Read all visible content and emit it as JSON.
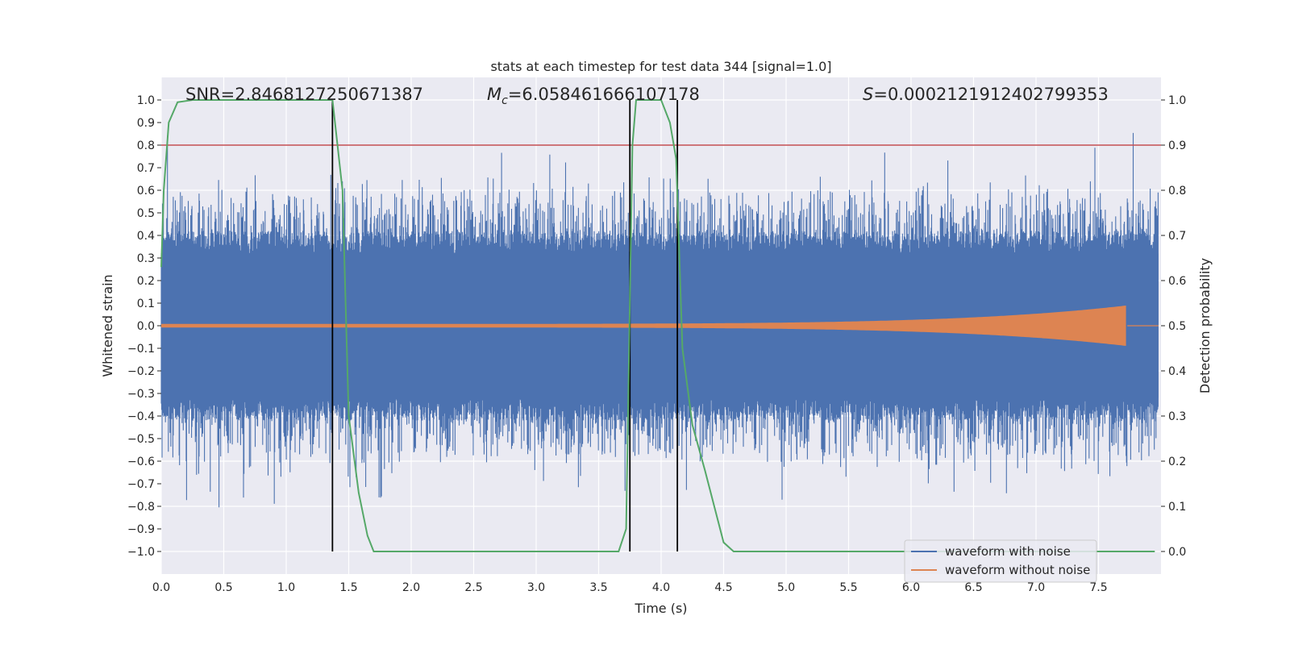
{
  "chart_data": {
    "type": "line",
    "title": "stats at each timestep for test data 344 [signal=1.0]",
    "xlabel": "Time (s)",
    "ylabel": "Whitened strain",
    "y2label": "Detection probability",
    "xlim": [
      0.0,
      8.0
    ],
    "ylim": [
      -1.1,
      1.1
    ],
    "y2lim": [
      -0.05,
      1.05
    ],
    "x_ticks": [
      0.0,
      0.5,
      1.0,
      1.5,
      2.0,
      2.5,
      3.0,
      3.5,
      4.0,
      4.5,
      5.0,
      5.5,
      6.0,
      6.5,
      7.0,
      7.5
    ],
    "y_ticks": [
      -1.0,
      -0.9,
      -0.8,
      -0.7,
      -0.6,
      -0.5,
      -0.4,
      -0.3,
      -0.2,
      -0.1,
      0.0,
      0.1,
      0.2,
      0.3,
      0.4,
      0.5,
      0.6,
      0.7,
      0.8,
      0.9,
      1.0
    ],
    "y2_ticks": [
      0.0,
      0.1,
      0.2,
      0.3,
      0.4,
      0.5,
      0.6,
      0.7,
      0.8,
      0.9,
      1.0
    ],
    "annotations": {
      "snr": "SNR=2.8468127250671387",
      "mc_symbol": "M",
      "mc_sub": "c",
      "mc_value": "=6.058461666107178",
      "s_symbol": "S",
      "s_value": "=0.00021219124027993​53"
    },
    "threshold_line": {
      "y2": 0.9,
      "color": "#c44e52"
    },
    "vertical_markers": [
      1.37,
      3.75,
      4.13
    ],
    "series": [
      {
        "name": "waveform with noise",
        "color": "#4c72b0",
        "envelope": "noise band approx ±0.4 with spikes up to ±1.0"
      },
      {
        "name": "waveform without noise",
        "color": "#dd8452",
        "chirp_end": 7.73,
        "peak_amplitude": 0.09
      },
      {
        "name": "detection probability",
        "color": "#55a868",
        "axis": "y2",
        "x": [
          0.0,
          0.02,
          0.06,
          0.13,
          0.25,
          0.5,
          1.0,
          1.37,
          1.45,
          1.5,
          1.58,
          1.65,
          1.7,
          2.0,
          3.0,
          3.66,
          3.72,
          3.77,
          3.8,
          4.0,
          4.07,
          4.12,
          4.17,
          4.25,
          4.35,
          4.5,
          4.58,
          5.0,
          6.0,
          7.0,
          7.95
        ],
        "values": [
          0.63,
          0.8,
          0.95,
          0.995,
          1.0,
          1.0,
          1.0,
          1.0,
          0.8,
          0.3,
          0.13,
          0.035,
          0.0,
          0.0,
          0.0,
          0.0,
          0.05,
          0.9,
          1.0,
          1.0,
          0.95,
          0.87,
          0.45,
          0.28,
          0.18,
          0.02,
          0.0,
          0.0,
          0.0,
          0.0,
          0.0
        ]
      }
    ],
    "legend": {
      "placement": "lower-right",
      "entries": [
        {
          "label": "waveform with noise",
          "color": "#4c72b0"
        },
        {
          "label": "waveform without noise",
          "color": "#dd8452"
        }
      ]
    }
  }
}
